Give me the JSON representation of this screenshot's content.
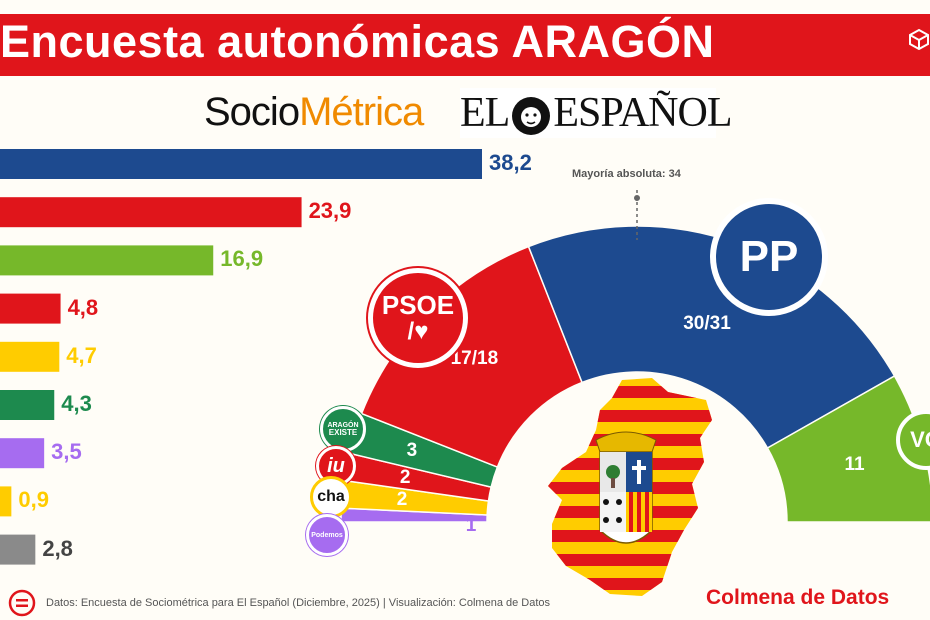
{
  "title": "Encuesta autonómicas ARAGÓN",
  "logos": {
    "sociometrica_part1": "Socio",
    "sociometrica_part2": "Métrica",
    "elespanol_part1": "EL",
    "elespanol_part2": "ESPAÑOL"
  },
  "footer": {
    "source": "Datos: Encuesta de Sociométrica para El Español (Diciembre, 2025) | Visualización: Colmena de Datos",
    "brand": "Colmena de Datos"
  },
  "majority_label": "Mayoría absoluta: 34",
  "party_logos": {
    "pp": "PP",
    "psoe_top": "PSOE",
    "psoe_bottom": "/♥",
    "vox": "VO",
    "aragon_existe_top": "ARAGÓN",
    "aragon_existe_bottom": "EXISTE",
    "iu": "iu",
    "cha": "cha",
    "podemos": "Podemos"
  },
  "chart_data": [
    {
      "type": "bar",
      "orientation": "horizontal",
      "categories": [
        "",
        "",
        "",
        "",
        "",
        "",
        "",
        "",
        ""
      ],
      "values": [
        38.2,
        23.9,
        16.9,
        4.8,
        4.7,
        4.3,
        3.5,
        0.9,
        2.8
      ],
      "value_labels": [
        "38,2",
        "23,9",
        "16,9",
        "4,8",
        "4,7",
        "4,3",
        "3,5",
        "0,9",
        "2,8"
      ],
      "colors": [
        "#1d4a8f",
        "#e0151b",
        "#76b82a",
        "#e0151b",
        "#ffcc00",
        "#1d8a4e",
        "#a66cf0",
        "#ffcc00",
        "#8a8a8a"
      ],
      "label_colors": [
        "#1d4a8f",
        "#e0151b",
        "#76b82a",
        "#e0151b",
        "#ffcc00",
        "#1d8a4e",
        "#a66cf0",
        "#ffcc00",
        "#444444"
      ]
    },
    {
      "type": "pie",
      "subtype": "parliament-hemicycle",
      "total_seats": 67,
      "majority": 34,
      "segments": [
        {
          "party": "Podemos",
          "seats": 1,
          "label": "1",
          "color": "#a66cf0"
        },
        {
          "party": "CHA",
          "seats": 2,
          "label": "2",
          "color": "#ffcc00"
        },
        {
          "party": "IU",
          "seats": 2,
          "label": "2",
          "color": "#e0151b"
        },
        {
          "party": "Aragón Existe",
          "seats": 3,
          "label": "3",
          "color": "#1d8a4e"
        },
        {
          "party": "PSOE",
          "seats": 17.5,
          "label": "17/18",
          "color": "#e0151b"
        },
        {
          "party": "PP",
          "seats": 30.5,
          "label": "30/31",
          "color": "#1d4a8f"
        },
        {
          "party": "Vox",
          "seats": 11,
          "label": "11",
          "color": "#76b82a"
        }
      ]
    }
  ]
}
